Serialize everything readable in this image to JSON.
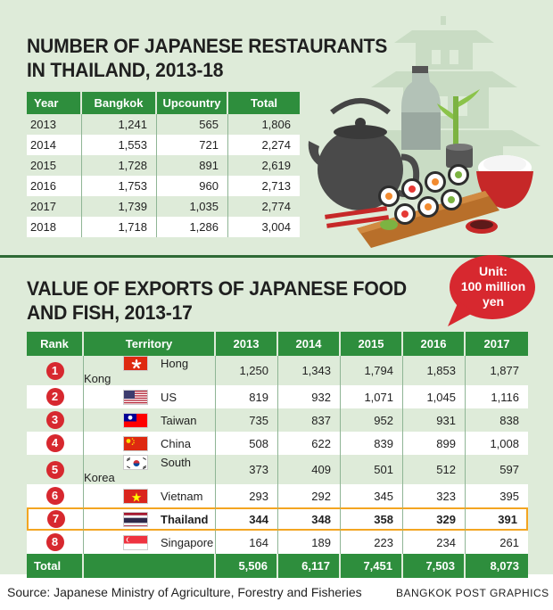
{
  "colors": {
    "accent": "#2e8e3d",
    "background": "#deebd9",
    "highlight": "#f3a521",
    "rank_badge": "#d7282f"
  },
  "section1": {
    "title_line1": "NUMBER OF JAPANESE RESTAURANTS",
    "title_line2": "IN THAILAND, 2013-18",
    "headers": [
      "Year",
      "Bangkok",
      "Upcountry",
      "Total"
    ],
    "rows": [
      [
        "2013",
        "1,241",
        "565",
        "1,806"
      ],
      [
        "2014",
        "1,553",
        "721",
        "2,274"
      ],
      [
        "2015",
        "1,728",
        "891",
        "2,619"
      ],
      [
        "2016",
        "1,753",
        "960",
        "2,713"
      ],
      [
        "2017",
        "1,739",
        "1,035",
        "2,774"
      ],
      [
        "2018",
        "1,718",
        "1,286",
        "3,004"
      ]
    ]
  },
  "section2": {
    "title_line1": "VALUE OF EXPORTS OF JAPANESE FOOD",
    "title_line2": "AND FISH, 2013-17",
    "unit_line1": "Unit:",
    "unit_line2": "100 million",
    "unit_line3": "yen",
    "headers": [
      "Rank",
      "Territory",
      "2013",
      "2014",
      "2015",
      "2016",
      "2017"
    ],
    "rows": [
      {
        "rank": "1",
        "territory": "Hong Kong",
        "flag": "hong-kong-flag-icon",
        "values": [
          "1,250",
          "1,343",
          "1,794",
          "1,853",
          "1,877"
        ]
      },
      {
        "rank": "2",
        "territory": "US",
        "flag": "us-flag-icon",
        "values": [
          "819",
          "932",
          "1,071",
          "1,045",
          "1,116"
        ]
      },
      {
        "rank": "3",
        "territory": "Taiwan",
        "flag": "taiwan-flag-icon",
        "values": [
          "735",
          "837",
          "952",
          "931",
          "838"
        ]
      },
      {
        "rank": "4",
        "territory": "China",
        "flag": "china-flag-icon",
        "values": [
          "508",
          "622",
          "839",
          "899",
          "1,008"
        ]
      },
      {
        "rank": "5",
        "territory": "South Korea",
        "flag": "south-korea-flag-icon",
        "values": [
          "373",
          "409",
          "501",
          "512",
          "597"
        ]
      },
      {
        "rank": "6",
        "territory": "Vietnam",
        "flag": "vietnam-flag-icon",
        "values": [
          "293",
          "292",
          "345",
          "323",
          "395"
        ]
      },
      {
        "rank": "7",
        "territory": "Thailand",
        "flag": "thailand-flag-icon",
        "values": [
          "344",
          "348",
          "358",
          "329",
          "391"
        ]
      },
      {
        "rank": "8",
        "territory": "Singapore",
        "flag": "singapore-flag-icon",
        "values": [
          "164",
          "189",
          "223",
          "234",
          "261"
        ]
      }
    ],
    "total_label": "Total",
    "totals": [
      "5,506",
      "6,117",
      "7,451",
      "7,503",
      "8,073"
    ]
  },
  "footer": {
    "source": "Source: Japanese Ministry of Agriculture, Forestry and Fisheries",
    "credit": "BANGKOK POST GRAPHICS"
  }
}
